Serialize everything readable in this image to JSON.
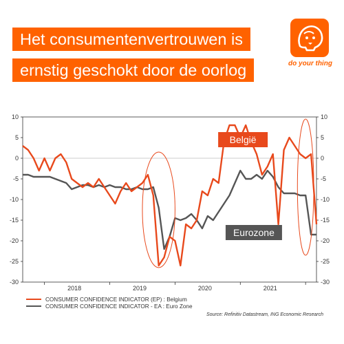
{
  "header": {
    "title_lines": [
      "Het consumentenvertrouwen is",
      "ernstig geschokt door de oorlog"
    ],
    "logo_icon": "lion-icon",
    "logo_text": "do your thing",
    "brand_color": "#ff6200"
  },
  "chart_data": {
    "type": "line",
    "ylim": [
      -30,
      10
    ],
    "yticks": [
      10,
      5,
      0,
      -5,
      -10,
      -15,
      -20,
      -25,
      -30
    ],
    "x_range": [
      "2017-09",
      "2022-03"
    ],
    "year_labels": [
      "2018",
      "2019",
      "2020",
      "2021"
    ],
    "grid": "horizontal-zero-line",
    "series": [
      {
        "name": "CONSUMER CONFIDENCE INDICATOR (EP) : Belgium",
        "color": "#e8491c",
        "x": [
          "2017-09",
          "2017-10",
          "2017-11",
          "2017-12",
          "2018-01",
          "2018-02",
          "2018-03",
          "2018-04",
          "2018-05",
          "2018-06",
          "2018-07",
          "2018-08",
          "2018-09",
          "2018-10",
          "2018-11",
          "2018-12",
          "2019-01",
          "2019-02",
          "2019-03",
          "2019-04",
          "2019-05",
          "2019-06",
          "2019-07",
          "2019-08",
          "2019-09",
          "2019-10",
          "2019-11",
          "2019-12",
          "2020-01",
          "2020-02",
          "2020-03",
          "2020-04",
          "2020-05",
          "2020-06",
          "2020-07",
          "2020-08",
          "2020-09",
          "2020-10",
          "2020-11",
          "2020-12",
          "2021-01",
          "2021-02",
          "2021-03",
          "2021-04",
          "2021-05",
          "2021-06",
          "2021-07",
          "2021-08",
          "2021-09",
          "2021-10",
          "2021-11",
          "2021-12",
          "2022-01",
          "2022-02",
          "2022-03"
        ],
        "values": [
          3,
          2,
          0,
          -3,
          0,
          -3,
          0,
          1,
          -1,
          -5,
          -6,
          -7,
          -6,
          -7,
          -5,
          -7,
          -9,
          -11,
          -8,
          -6,
          -8,
          -7,
          -6,
          -4,
          -9,
          -26,
          -24,
          -19,
          -20,
          -26,
          -16,
          -17,
          -15,
          -8,
          -9,
          -5,
          -6,
          4,
          8,
          8,
          5,
          8,
          4,
          1,
          -4,
          -2,
          1,
          -16,
          2,
          5,
          3,
          1,
          0,
          1,
          -16
        ]
      },
      {
        "name": "CONSUMER CONFIDENCE INDICATOR - EA : Euro Zone",
        "color": "#555555",
        "x": [
          "2017-09",
          "2017-10",
          "2017-11",
          "2017-12",
          "2018-01",
          "2018-02",
          "2018-03",
          "2018-04",
          "2018-05",
          "2018-06",
          "2018-07",
          "2018-08",
          "2018-09",
          "2018-10",
          "2018-11",
          "2018-12",
          "2019-01",
          "2019-02",
          "2019-03",
          "2019-04",
          "2019-05",
          "2019-06",
          "2019-07",
          "2019-08",
          "2019-09",
          "2019-10",
          "2019-11",
          "2019-12",
          "2020-01",
          "2020-02",
          "2020-03",
          "2020-04",
          "2020-05",
          "2020-06",
          "2020-07",
          "2020-08",
          "2020-09",
          "2020-10",
          "2020-11",
          "2020-12",
          "2021-01",
          "2021-02",
          "2021-03",
          "2021-04",
          "2021-05",
          "2021-06",
          "2021-07",
          "2021-08",
          "2021-09",
          "2021-10",
          "2021-11",
          "2021-12",
          "2022-01",
          "2022-02",
          "2022-03"
        ],
        "values": [
          -4,
          -4,
          -4.5,
          -4.5,
          -4.5,
          -4.5,
          -5,
          -5.5,
          -6,
          -7.5,
          -7,
          -6.5,
          -6.5,
          -7,
          -6.5,
          -7,
          -6.5,
          -7,
          -7,
          -7.5,
          -7.5,
          -7,
          -7.5,
          -7.5,
          -7,
          -12,
          -22,
          -19,
          -14.5,
          -15,
          -14.5,
          -13.5,
          -15,
          -17,
          -14,
          -15,
          -13,
          -11,
          -9,
          -6,
          -3,
          -5,
          -5,
          -4,
          -5,
          -3,
          -4.5,
          -7,
          -8.5,
          -8.5,
          -8.5,
          -9,
          -9,
          -18.5,
          -18.5
        ]
      }
    ],
    "annotations": [
      {
        "text": "België",
        "anchor": [
          "2021-03",
          4.5
        ],
        "fill": "#e8491c",
        "text_color": "#ffffff"
      },
      {
        "text": "Eurozone",
        "anchor": [
          "2021-05",
          -18
        ],
        "fill": "#555555",
        "text_color": "#ffffff"
      }
    ],
    "highlight_ellipses": [
      {
        "center": [
          "2019-10",
          -12.5
        ],
        "rx_months": 3,
        "ry": 14
      },
      {
        "center": [
          "2022-01",
          -7
        ],
        "rx_months": 1.5,
        "ry": 16.5
      }
    ]
  },
  "source": "Source: Refinitiv Datastream, ING Economic Research"
}
